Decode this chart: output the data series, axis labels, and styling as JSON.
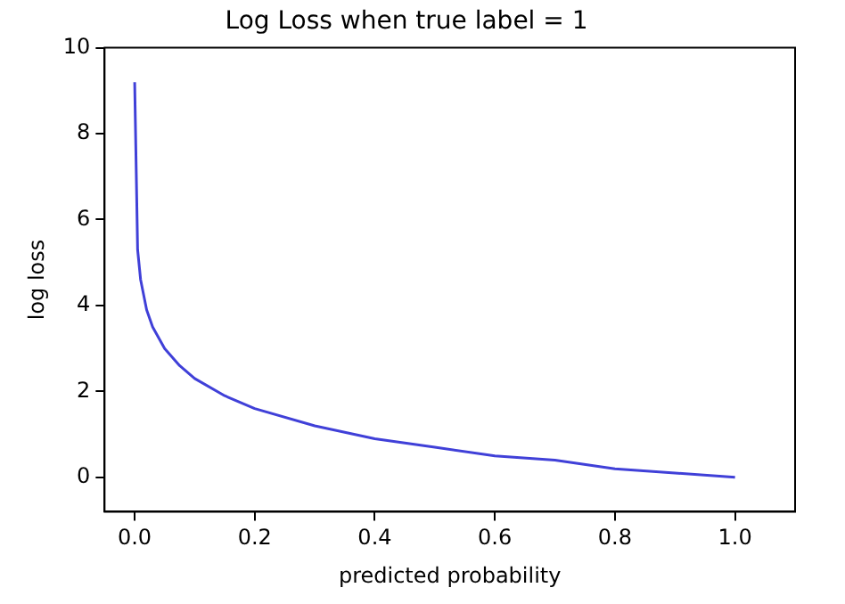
{
  "chart_data": {
    "type": "line",
    "title": "Log Loss when true label = 1",
    "xlabel": "predicted probability",
    "ylabel": "log loss",
    "x": [
      0.0001,
      0.005,
      0.01,
      0.02,
      0.03,
      0.05,
      0.075,
      0.1,
      0.15,
      0.2,
      0.3,
      0.4,
      0.5,
      0.6,
      0.7,
      0.8,
      0.9,
      1.0
    ],
    "series": [
      {
        "color": "#4040d8",
        "values": [
          9.2,
          5.3,
          4.6,
          3.9,
          3.5,
          3.0,
          2.6,
          2.3,
          1.9,
          1.6,
          1.2,
          0.9,
          0.7,
          0.5,
          0.4,
          0.2,
          0.1,
          0.0
        ]
      }
    ],
    "xlim": [
      -0.05,
      1.1
    ],
    "ylim": [
      -0.8,
      10
    ],
    "xticks": [
      {
        "value": 0,
        "label": "0.0"
      },
      {
        "value": 0.2,
        "label": "0.2"
      },
      {
        "value": 0.4,
        "label": "0.4"
      },
      {
        "value": 0.6,
        "label": "0.6"
      },
      {
        "value": 0.8,
        "label": "0.8"
      },
      {
        "value": 1,
        "label": "1.0"
      }
    ],
    "yticks": [
      0,
      2,
      4,
      6,
      8,
      10
    ],
    "grid": false,
    "legend": false,
    "marker": "none",
    "line_style": "solid"
  }
}
